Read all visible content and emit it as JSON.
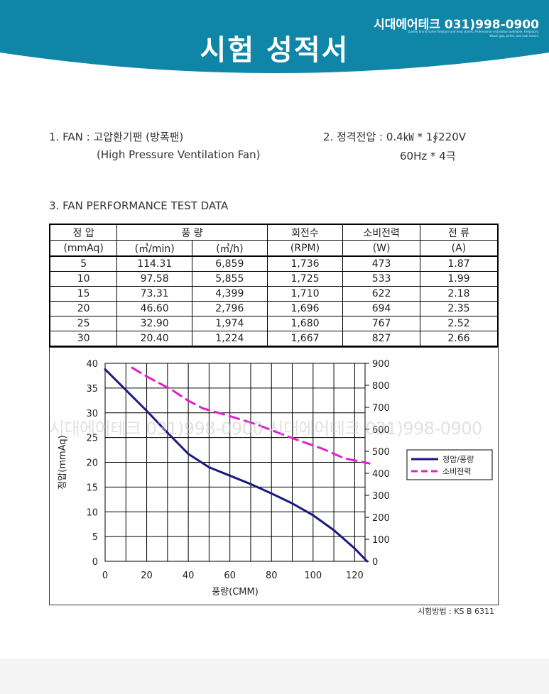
{
  "header": {
    "title": "시험 성적서",
    "brand": "시대에어테크 031)998-0900",
    "tagline": "Quality brand name fireplace and heat stoves, Professional installation available. Fireplaces, Wood, gas, pellet, and coal stoves."
  },
  "info": {
    "fan_line": "1. FAN : 고압환기팬 (방폭팬)",
    "fan_line_en": "(High Pressure Ventilation Fan)",
    "voltage_line": "2. 정격전압 : 0.4㎾ * 1∮220V",
    "voltage_line2": "60Hz * 4극",
    "section3": "3. FAN PERFORMANCE TEST DATA"
  },
  "table": {
    "header1": [
      "정 압",
      "풍 량",
      "회전수",
      "소비전력",
      "전 류"
    ],
    "header2": [
      "(mmAq)",
      "(㎥/min)",
      "(㎥/h)",
      "(RPM)",
      "(W)",
      "(A)"
    ],
    "rows": [
      [
        "5",
        "114.31",
        "6,859",
        "1,736",
        "473",
        "1.87"
      ],
      [
        "10",
        "97.58",
        "5,855",
        "1,725",
        "533",
        "1.99"
      ],
      [
        "15",
        "73.31",
        "4,399",
        "1,710",
        "622",
        "2.18"
      ],
      [
        "20",
        "46.60",
        "2,796",
        "1,696",
        "694",
        "2.35"
      ],
      [
        "25",
        "32.90",
        "1,974",
        "1,680",
        "767",
        "2.52"
      ],
      [
        "30",
        "20.40",
        "1,224",
        "1,667",
        "827",
        "2.66"
      ]
    ]
  },
  "watermark": "시대에어테크 031)998-0900 시대에어테크 031)998-0900",
  "chart_data": {
    "type": "line",
    "xlabel": "풍량(CMM)",
    "ylabel": "정압(mmAq)",
    "xlim": [
      0,
      125
    ],
    "ylim": [
      0,
      40
    ],
    "y2lim": [
      0,
      900
    ],
    "xticks": [
      0,
      20,
      40,
      60,
      80,
      100,
      120
    ],
    "yticks": [
      0,
      5,
      10,
      15,
      20,
      25,
      30,
      35,
      40
    ],
    "y2ticks": [
      0,
      100,
      200,
      300,
      400,
      500,
      600,
      700,
      800,
      900
    ],
    "grid": true,
    "legend_position": "right",
    "series": [
      {
        "name": "정압/풍량",
        "axis": "left",
        "color": "#1a1a80",
        "style": "solid",
        "x": [
          0,
          10,
          20,
          30,
          40,
          50,
          60,
          70,
          80,
          90,
          100,
          110,
          120,
          126
        ],
        "y": [
          38.8,
          34.6,
          30.4,
          26.0,
          21.7,
          19.0,
          17.3,
          15.6,
          13.7,
          11.7,
          9.3,
          6.3,
          2.6,
          0
        ]
      },
      {
        "name": "소비전력",
        "axis": "right",
        "color": "#dd22cc",
        "style": "dashed",
        "x": [
          13,
          20,
          32,
          40,
          47,
          60,
          73,
          90,
          105,
          115,
          127
        ],
        "y": [
          880,
          840,
          780,
          730,
          695,
          660,
          622,
          560,
          510,
          468,
          445
        ]
      }
    ]
  },
  "footer": {
    "method": "시험방법 : KS B 6311"
  },
  "colors": {
    "banner": "#0f86a8",
    "banner_light": "#1a9bbd"
  }
}
